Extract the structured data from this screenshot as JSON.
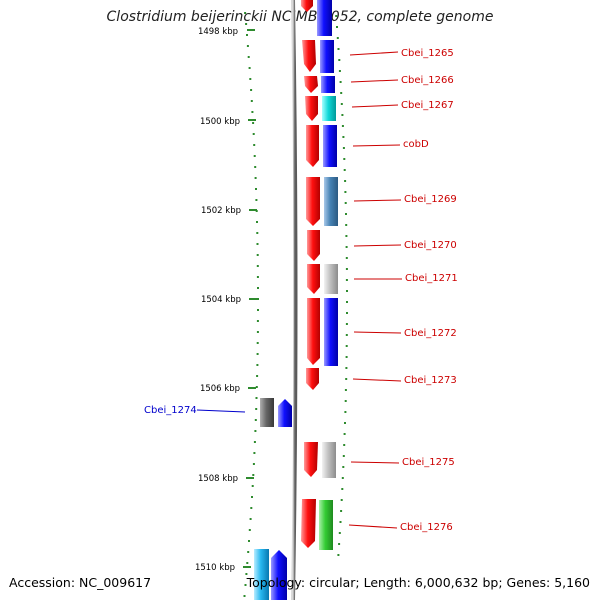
{
  "title": "Clostridium beijerinckii NCIMB 8052, complete genome",
  "footer": {
    "accession": "Accession: NC_009617",
    "summary": "Topology: circular; Length: 6,000,632 bp; Genes: 5,160"
  },
  "scale_labels": [
    "1498 kbp",
    "1500 kbp",
    "1502 kbp",
    "1504 kbp",
    "1506 kbp",
    "1508 kbp",
    "1510 kbp"
  ],
  "genes": [
    {
      "label": "Cbei_1265",
      "strand": "plus",
      "color": "#cc0000"
    },
    {
      "label": "Cbei_1266",
      "strand": "plus",
      "color": "#cc0000"
    },
    {
      "label": "Cbei_1267",
      "strand": "plus",
      "color": "#cc0000"
    },
    {
      "label": "cobD",
      "strand": "plus",
      "color": "#cc0000"
    },
    {
      "label": "Cbei_1269",
      "strand": "plus",
      "color": "#cc0000"
    },
    {
      "label": "Cbei_1270",
      "strand": "plus",
      "color": "#cc0000"
    },
    {
      "label": "Cbei_1271",
      "strand": "plus",
      "color": "#cc0000"
    },
    {
      "label": "Cbei_1272",
      "strand": "plus",
      "color": "#cc0000"
    },
    {
      "label": "Cbei_1273",
      "strand": "plus",
      "color": "#cc0000"
    },
    {
      "label": "Cbei_1274",
      "strand": "minus",
      "color": "#0000cc"
    },
    {
      "label": "Cbei_1275",
      "strand": "plus",
      "color": "#cc0000"
    },
    {
      "label": "Cbei_1276",
      "strand": "plus",
      "color": "#cc0000"
    }
  ],
  "colors": {
    "backbone": "#808080",
    "scale_tick": "#2e8b2e",
    "plus_label": "#cc0000",
    "minus_label": "#0000cc",
    "cds_plus": "#ff0000",
    "cds_minus": "#0000ff",
    "cog_cyan": "#00cccc",
    "cog_steel": "#4682b4",
    "cog_gray": "#b8b8b8",
    "cog_green": "#33cc33",
    "cog_dark": "#555555"
  }
}
